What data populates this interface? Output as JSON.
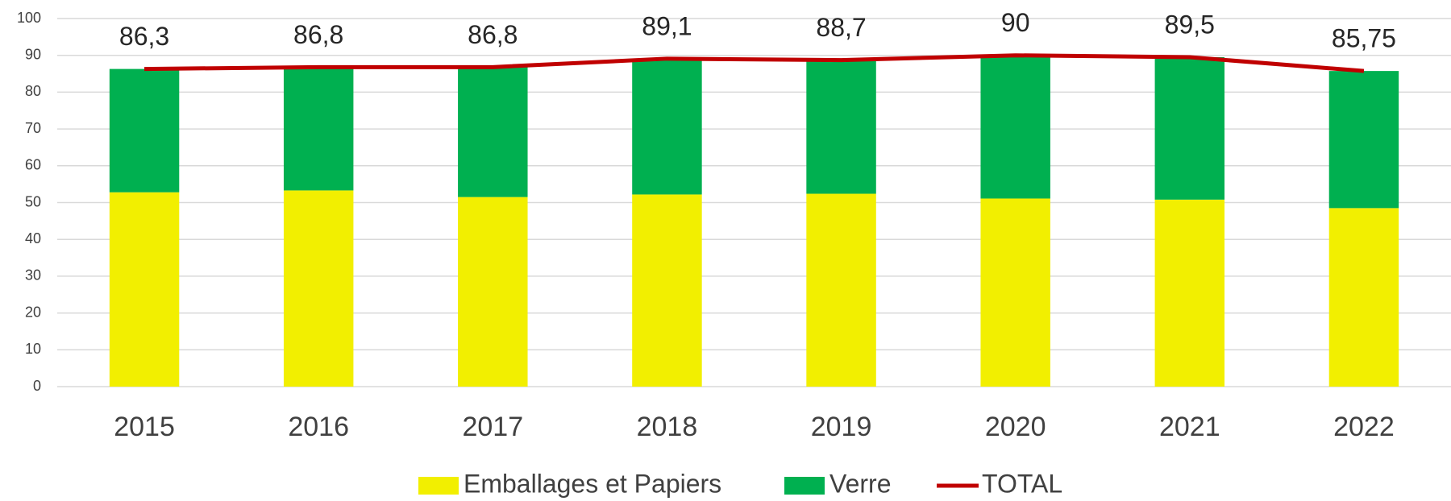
{
  "chart_data": {
    "type": "bar",
    "stacked": true,
    "categories": [
      "2015",
      "2016",
      "2017",
      "2018",
      "2019",
      "2020",
      "2021",
      "2022"
    ],
    "series": [
      {
        "name": "Emballages et Papiers",
        "color": "#f2ef00",
        "values": [
          52.8,
          53.3,
          51.5,
          52.2,
          52.4,
          51.1,
          50.8,
          48.5
        ]
      },
      {
        "name": "Verre",
        "color": "#00b050",
        "values": [
          33.5,
          33.5,
          35.3,
          36.9,
          36.3,
          38.9,
          38.7,
          37.25
        ]
      },
      {
        "name": "TOTAL",
        "color": "#c00000",
        "type": "line",
        "values": [
          86.3,
          86.8,
          86.8,
          89.1,
          88.7,
          90,
          89.5,
          85.75
        ],
        "value_labels": [
          "86,3",
          "86,8",
          "86,8",
          "89,1",
          "88,7",
          "90",
          "89,5",
          "85,75"
        ]
      }
    ],
    "ylim": [
      0,
      100
    ],
    "yticks": [
      0,
      10,
      20,
      30,
      40,
      50,
      60,
      70,
      80,
      90,
      100
    ],
    "grid": true,
    "legend": "bottom"
  }
}
